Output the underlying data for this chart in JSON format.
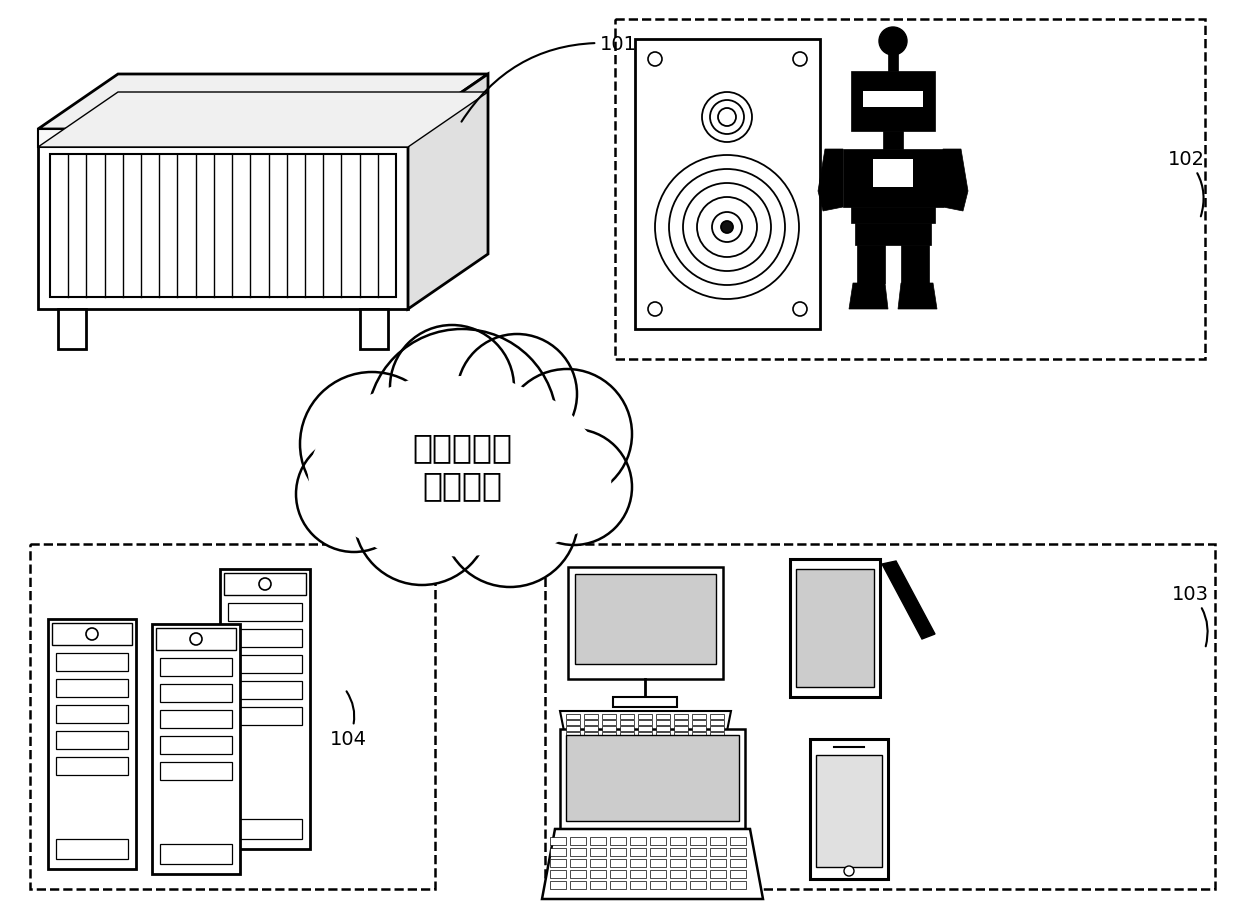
{
  "bg_color": "#ffffff",
  "label_101": "101",
  "label_102": "102",
  "label_103": "103",
  "label_104": "104",
  "cloud_text_line1": "有线网络或",
  "cloud_text_line2": "无线网络",
  "line_color": "#000000",
  "text_color": "#000000",
  "label_fontsize": 14,
  "cloud_fontsize": 24,
  "fig_width": 12.4,
  "fig_height": 9.2,
  "dpi": 100
}
